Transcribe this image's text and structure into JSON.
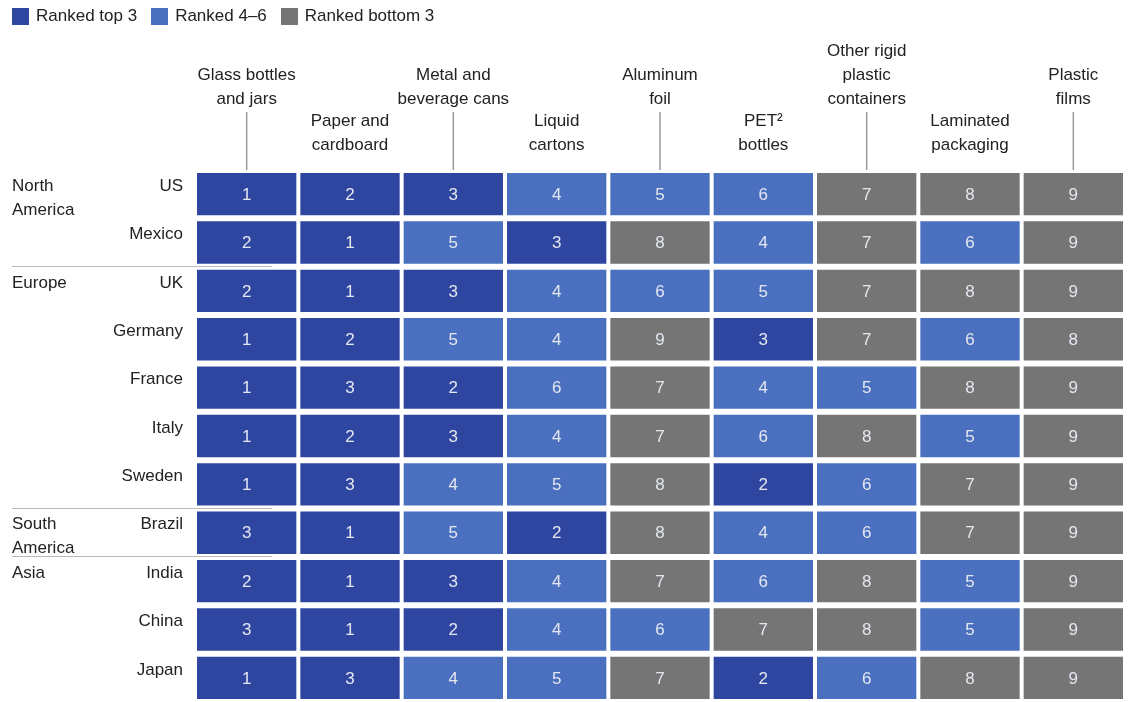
{
  "chart_data": {
    "type": "heatmap",
    "categories": [
      "Glass bottles\nand jars",
      "Paper and\ncardboard",
      "Metal and\nbeverage cans",
      "Liquid\ncartons",
      "Aluminum\nfoil",
      "PET²\nbottles",
      "Other rigid\nplastic\ncontainers",
      "Laminated\npackaging",
      "Plastic\nfilms"
    ],
    "y_categories": [
      "US",
      "Mexico",
      "UK",
      "Germany",
      "France",
      "Italy",
      "Sweden",
      "Brazil",
      "India",
      "China",
      "Japan"
    ],
    "y2_categories": [
      "North America",
      null,
      "Europe",
      null,
      null,
      null,
      null,
      "South America",
      "Asia",
      null,
      null
    ],
    "cells": [
      [
        1,
        2,
        3,
        4,
        5,
        6,
        7,
        8,
        9
      ],
      [
        2,
        1,
        5,
        3,
        8,
        4,
        7,
        6,
        9
      ],
      [
        2,
        1,
        3,
        4,
        6,
        5,
        7,
        8,
        9
      ],
      [
        1,
        2,
        5,
        4,
        9,
        3,
        7,
        6,
        8
      ],
      [
        1,
        3,
        2,
        6,
        7,
        4,
        5,
        8,
        9
      ],
      [
        1,
        2,
        3,
        4,
        7,
        6,
        8,
        5,
        9
      ],
      [
        1,
        3,
        4,
        5,
        8,
        2,
        6,
        7,
        9
      ],
      [
        3,
        1,
        5,
        2,
        8,
        4,
        6,
        7,
        9
      ],
      [
        2,
        1,
        3,
        4,
        7,
        6,
        8,
        5,
        9
      ],
      [
        3,
        1,
        2,
        4,
        6,
        7,
        8,
        5,
        9
      ],
      [
        1,
        3,
        4,
        5,
        7,
        2,
        6,
        8,
        9
      ]
    ],
    "colors": [
      "#2f46a0",
      "#4a70bf",
      "#757575"
    ],
    "annotations": [
      "Ranked top 3",
      "Ranked 4–6",
      "Ranked bottom 3"
    ],
    "data_labels": true
  }
}
